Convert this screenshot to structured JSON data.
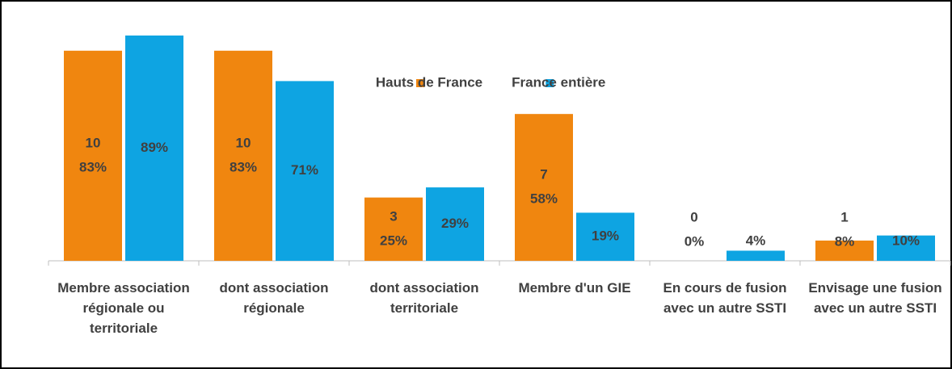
{
  "chart_data": {
    "type": "bar",
    "categories": [
      "Membre association régionale ou territoriale",
      "dont association régionale",
      "dont association territoriale",
      "Membre d'un GIE",
      "En cours de fusion avec un autre SSTI",
      "Envisage une fusion avec un autre SSTI"
    ],
    "series": [
      {
        "name": "Hauts de France",
        "color": "#f0860f",
        "values": [
          83,
          83,
          25,
          58,
          0,
          8
        ],
        "value_labels": [
          "83%",
          "83%",
          "25%",
          "58%",
          "0%",
          "8%"
        ],
        "counts": [
          10,
          10,
          3,
          7,
          0,
          1
        ]
      },
      {
        "name": "France entière",
        "color": "#0ea4e2",
        "values": [
          89,
          71,
          29,
          19,
          4,
          10
        ],
        "value_labels": [
          "89%",
          "71%",
          "29%",
          "19%",
          "4%",
          "10%"
        ]
      }
    ],
    "ylim": [
      0,
      100
    ],
    "legend": "top"
  }
}
